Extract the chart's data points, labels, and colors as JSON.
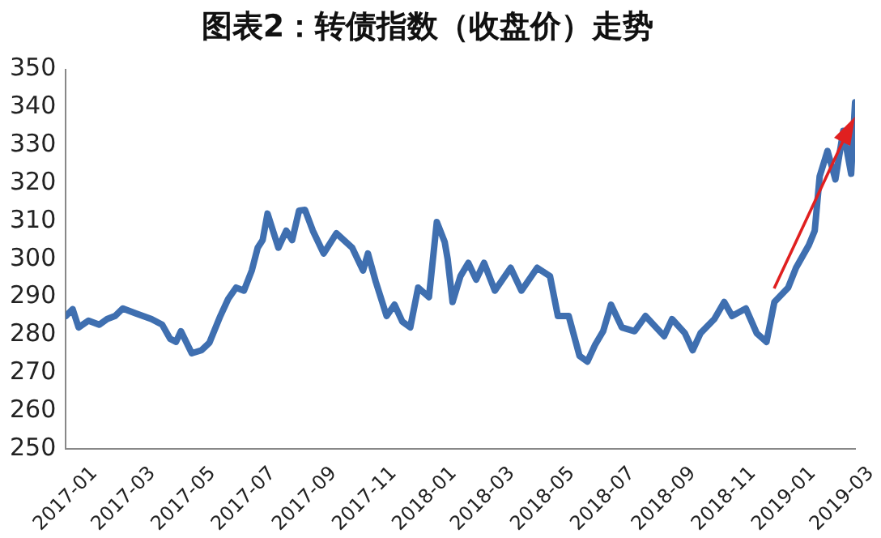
{
  "chart_data": {
    "type": "line",
    "title": "图表2：转债指数（收盘价）走势",
    "x": [
      "2017-01-01",
      "2017-01-08",
      "2017-01-14",
      "2017-01-24",
      "2017-02-04",
      "2017-02-12",
      "2017-02-20",
      "2017-02-28",
      "2017-03-13",
      "2017-03-29",
      "2017-04-09",
      "2017-04-17",
      "2017-04-23",
      "2017-04-28",
      "2017-05-09",
      "2017-05-19",
      "2017-05-27",
      "2017-06-07",
      "2017-06-15",
      "2017-06-23",
      "2017-07-01",
      "2017-07-09",
      "2017-07-15",
      "2017-07-20",
      "2017-07-25",
      "2017-08-05",
      "2017-08-13",
      "2017-08-19",
      "2017-08-26",
      "2017-09-01",
      "2017-09-09",
      "2017-09-20",
      "2017-10-03",
      "2017-10-19",
      "2017-10-30",
      "2017-11-04",
      "2017-11-12",
      "2017-11-23",
      "2017-12-01",
      "2017-12-09",
      "2017-12-17",
      "2017-12-25",
      "2018-01-05",
      "2018-01-13",
      "2018-01-21",
      "2018-01-24",
      "2018-01-29",
      "2018-02-06",
      "2018-02-14",
      "2018-02-22",
      "2018-03-02",
      "2018-03-13",
      "2018-03-29",
      "2018-04-09",
      "2018-04-25",
      "2018-05-08",
      "2018-05-16",
      "2018-05-27",
      "2018-06-07",
      "2018-06-15",
      "2018-06-23",
      "2018-07-01",
      "2018-07-09",
      "2018-07-20",
      "2018-08-02",
      "2018-08-13",
      "2018-09-01",
      "2018-09-09",
      "2018-09-22",
      "2018-09-30",
      "2018-10-08",
      "2018-10-22",
      "2018-11-01",
      "2018-11-09",
      "2018-11-23",
      "2018-12-04",
      "2018-12-14",
      "2018-12-22",
      "2019-01-05",
      "2019-01-13",
      "2019-01-26",
      "2019-02-01",
      "2019-02-06",
      "2019-02-14",
      "2019-02-22",
      "2019-03-02",
      "2019-03-10",
      "2019-03-14"
    ],
    "series": [
      {
        "color": "#3f6fb0",
        "values": [
          285,
          286.8,
          282,
          283.8,
          282.7,
          284.2,
          285,
          287,
          285.7,
          284.2,
          282.7,
          279,
          278.2,
          281,
          275.2,
          276,
          278,
          285,
          289.5,
          292.5,
          291.7,
          297,
          303,
          305,
          312,
          303,
          307.5,
          305,
          312.8,
          313,
          307.5,
          301.5,
          306.8,
          303,
          297,
          301.5,
          294,
          285,
          288,
          283.5,
          282,
          292.5,
          290,
          309.8,
          304.5,
          300,
          288.7,
          295.5,
          299,
          294.6,
          299,
          291.7,
          297.7,
          291.7,
          297.7,
          295.5,
          285,
          285,
          274.5,
          273,
          277.5,
          281,
          288,
          282,
          281,
          285,
          279.7,
          284.2,
          280.5,
          276,
          280.5,
          284.2,
          288.7,
          285,
          287,
          280.5,
          278.2,
          288.7,
          292.5,
          297.7,
          303.7,
          307.5,
          321.8,
          328.5,
          321,
          333.8,
          322.5,
          341.3
        ]
      }
    ],
    "xlim": [
      "2017-01-01",
      "2019-03-14"
    ],
    "xticks": [
      "2017-01",
      "2017-03",
      "2017-05",
      "2017-07",
      "2017-09",
      "2017-11",
      "2018-01",
      "2018-03",
      "2018-05",
      "2018-07",
      "2018-09",
      "2018-11",
      "2019-01",
      "2019-03"
    ],
    "ylim": [
      250,
      350
    ],
    "yticks": [
      250,
      260,
      270,
      280,
      290,
      300,
      310,
      320,
      330,
      340,
      350
    ],
    "grid": false,
    "legend": false,
    "marker": "none",
    "line_style": "solid"
  }
}
